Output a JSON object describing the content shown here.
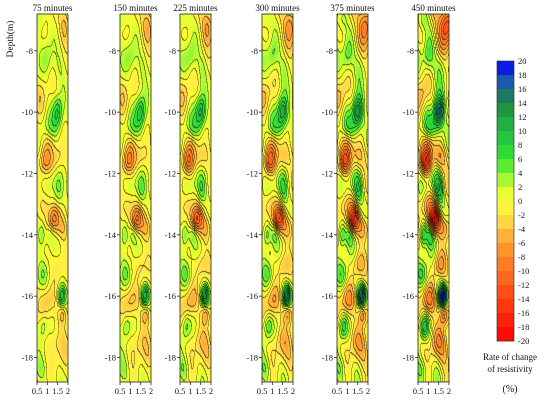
{
  "chart_data": {
    "type": "heatmap",
    "ylabel": "Depth(m)",
    "ylim": [
      -18.8,
      -6.8
    ],
    "y_ticks": [
      -8,
      -10,
      -12,
      -14,
      -16,
      -18
    ],
    "x_ticks": [
      0.5,
      1,
      1.5,
      2
    ],
    "xlim": [
      0.5,
      2
    ],
    "panels": [
      {
        "title": "75 minutes",
        "intensity": 0.65
      },
      {
        "title": "150 minutes",
        "intensity": 0.75
      },
      {
        "title": "225 minutes",
        "intensity": 0.85
      },
      {
        "title": "300 minutes",
        "intensity": 0.95
      },
      {
        "title": "375 minutes",
        "intensity": 1.1
      },
      {
        "title": "450 minutes",
        "intensity": 1.35
      }
    ],
    "features": [
      {
        "x": 1.5,
        "y": -10.0,
        "value": 12,
        "sx": 0.17,
        "sy": 0.35
      },
      {
        "x": 1.2,
        "y": -10.6,
        "value": 6,
        "sx": 0.3,
        "sy": 0.4
      },
      {
        "x": 1.1,
        "y": -11.0,
        "value": -6,
        "sx": 0.25,
        "sy": 0.3
      },
      {
        "x": 0.9,
        "y": -11.6,
        "value": -9,
        "sx": 0.2,
        "sy": 0.3
      },
      {
        "x": 1.5,
        "y": -11.5,
        "value": -5,
        "sx": 0.25,
        "sy": 0.3
      },
      {
        "x": 1.3,
        "y": -13.5,
        "value": -13,
        "sx": 0.2,
        "sy": 0.3
      },
      {
        "x": 1.8,
        "y": -13.8,
        "value": -6,
        "sx": 0.2,
        "sy": 0.3
      },
      {
        "x": 0.9,
        "y": -13.0,
        "value": -5,
        "sx": 0.2,
        "sy": 0.3
      },
      {
        "x": 1.7,
        "y": -16.0,
        "value": 14,
        "sx": 0.14,
        "sy": 0.25
      },
      {
        "x": 1.75,
        "y": -16.6,
        "value": -8,
        "sx": 0.15,
        "sy": 0.25
      },
      {
        "x": 1.0,
        "y": -16.2,
        "value": -6,
        "sx": 0.25,
        "sy": 0.35
      },
      {
        "x": 0.75,
        "y": -14.0,
        "value": 7,
        "sx": 0.12,
        "sy": 0.3
      },
      {
        "x": 1.1,
        "y": -14.0,
        "value": 5,
        "sx": 0.15,
        "sy": 0.25
      },
      {
        "x": 1.55,
        "y": -12.6,
        "value": 6,
        "sx": 0.15,
        "sy": 0.35
      },
      {
        "x": 1.0,
        "y": -8.2,
        "value": 5,
        "sx": 0.2,
        "sy": 0.4
      },
      {
        "x": 1.6,
        "y": -8.5,
        "value": 3,
        "sx": 0.2,
        "sy": 0.4
      },
      {
        "x": 0.7,
        "y": -9.5,
        "value": -4,
        "sx": 0.2,
        "sy": 0.4
      },
      {
        "x": 1.85,
        "y": -7.2,
        "value": -7,
        "sx": 0.2,
        "sy": 0.4
      },
      {
        "x": 0.7,
        "y": -7.0,
        "value": 4,
        "sx": 0.2,
        "sy": 0.3
      },
      {
        "x": 0.8,
        "y": -15.3,
        "value": 4,
        "sx": 0.2,
        "sy": 0.3
      },
      {
        "x": 0.8,
        "y": -17.0,
        "value": 6,
        "sx": 0.15,
        "sy": 0.3
      },
      {
        "x": 1.4,
        "y": -17.5,
        "value": -4,
        "sx": 0.3,
        "sy": 0.4
      },
      {
        "x": 0.7,
        "y": -18.4,
        "value": 4,
        "sx": 0.2,
        "sy": 0.3
      },
      {
        "x": 1.9,
        "y": -18.0,
        "value": -3,
        "sx": 0.2,
        "sy": 0.4
      },
      {
        "x": 1.3,
        "y": -12.3,
        "value": 3,
        "sx": 0.2,
        "sy": 0.3
      },
      {
        "x": 1.5,
        "y": -15.0,
        "value": -4,
        "sx": 0.2,
        "sy": 0.3
      }
    ],
    "colorbar": {
      "ticks": [
        20,
        18,
        16,
        14,
        12,
        10,
        8,
        6,
        4,
        2,
        0,
        -2,
        -4,
        -6,
        -8,
        -10,
        -12,
        -14,
        -16,
        -18,
        -20
      ],
      "range": [
        -20,
        20
      ],
      "title_line1": "Rate of change",
      "title_line2": "of resistivity",
      "unit": "(%)",
      "stops": [
        {
          "value": -20,
          "color": "#ff0000"
        },
        {
          "value": -12,
          "color": "#ff5a1a"
        },
        {
          "value": -6,
          "color": "#ffa030"
        },
        {
          "value": -2,
          "color": "#ffe84a"
        },
        {
          "value": 0,
          "color": "#ffff30"
        },
        {
          "value": 2,
          "color": "#ccff33"
        },
        {
          "value": 6,
          "color": "#33e433"
        },
        {
          "value": 10,
          "color": "#22bb44"
        },
        {
          "value": 14,
          "color": "#1f8a3f"
        },
        {
          "value": 17,
          "color": "#1a5aa8"
        },
        {
          "value": 20,
          "color": "#0000ff"
        }
      ]
    }
  }
}
